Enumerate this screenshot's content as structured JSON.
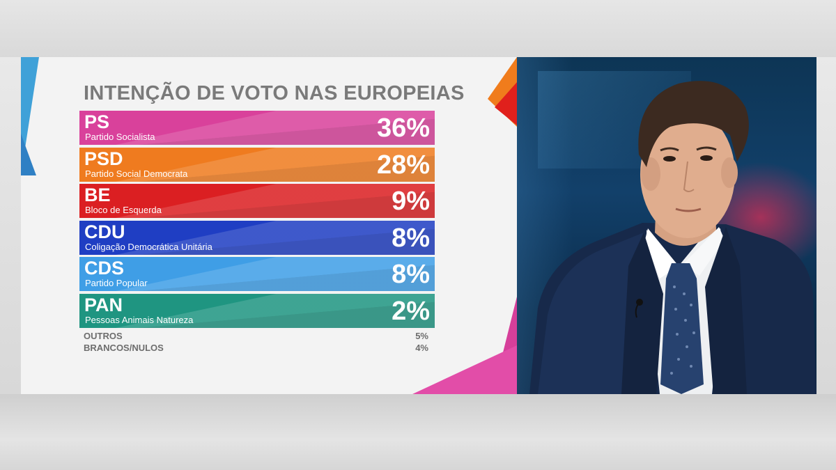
{
  "poll": {
    "title": "INTENÇÃO DE VOTO NAS EUROPEIAS",
    "parties": [
      {
        "abbr": "PS",
        "name": "Partido Socialista",
        "pct": "36%",
        "color": "#d9419b"
      },
      {
        "abbr": "PSD",
        "name": "Partido Social Democrata",
        "pct": "28%",
        "color": "#ef7b1f"
      },
      {
        "abbr": "BE",
        "name": "Bloco de Esquerda",
        "pct": "9%",
        "color": "#db1f22"
      },
      {
        "abbr": "CDU",
        "name": "Coligação Democrática Unitária",
        "pct": "8%",
        "color": "#1f3ec3"
      },
      {
        "abbr": "CDS",
        "name": "Partido Popular",
        "pct": "8%",
        "color": "#3f9ee6"
      },
      {
        "abbr": "PAN",
        "name": "Pessoas Animais Natureza",
        "pct": "2%",
        "color": "#1f9581"
      }
    ],
    "others": [
      {
        "label": "OUTROS",
        "pct": "5%"
      },
      {
        "label": "BRANCOS/NULOS",
        "pct": "4%"
      }
    ]
  },
  "colors": {
    "title": "#7a7a7a",
    "panel_bg": "#f3f3f3",
    "camera_bg": "#12406a"
  }
}
